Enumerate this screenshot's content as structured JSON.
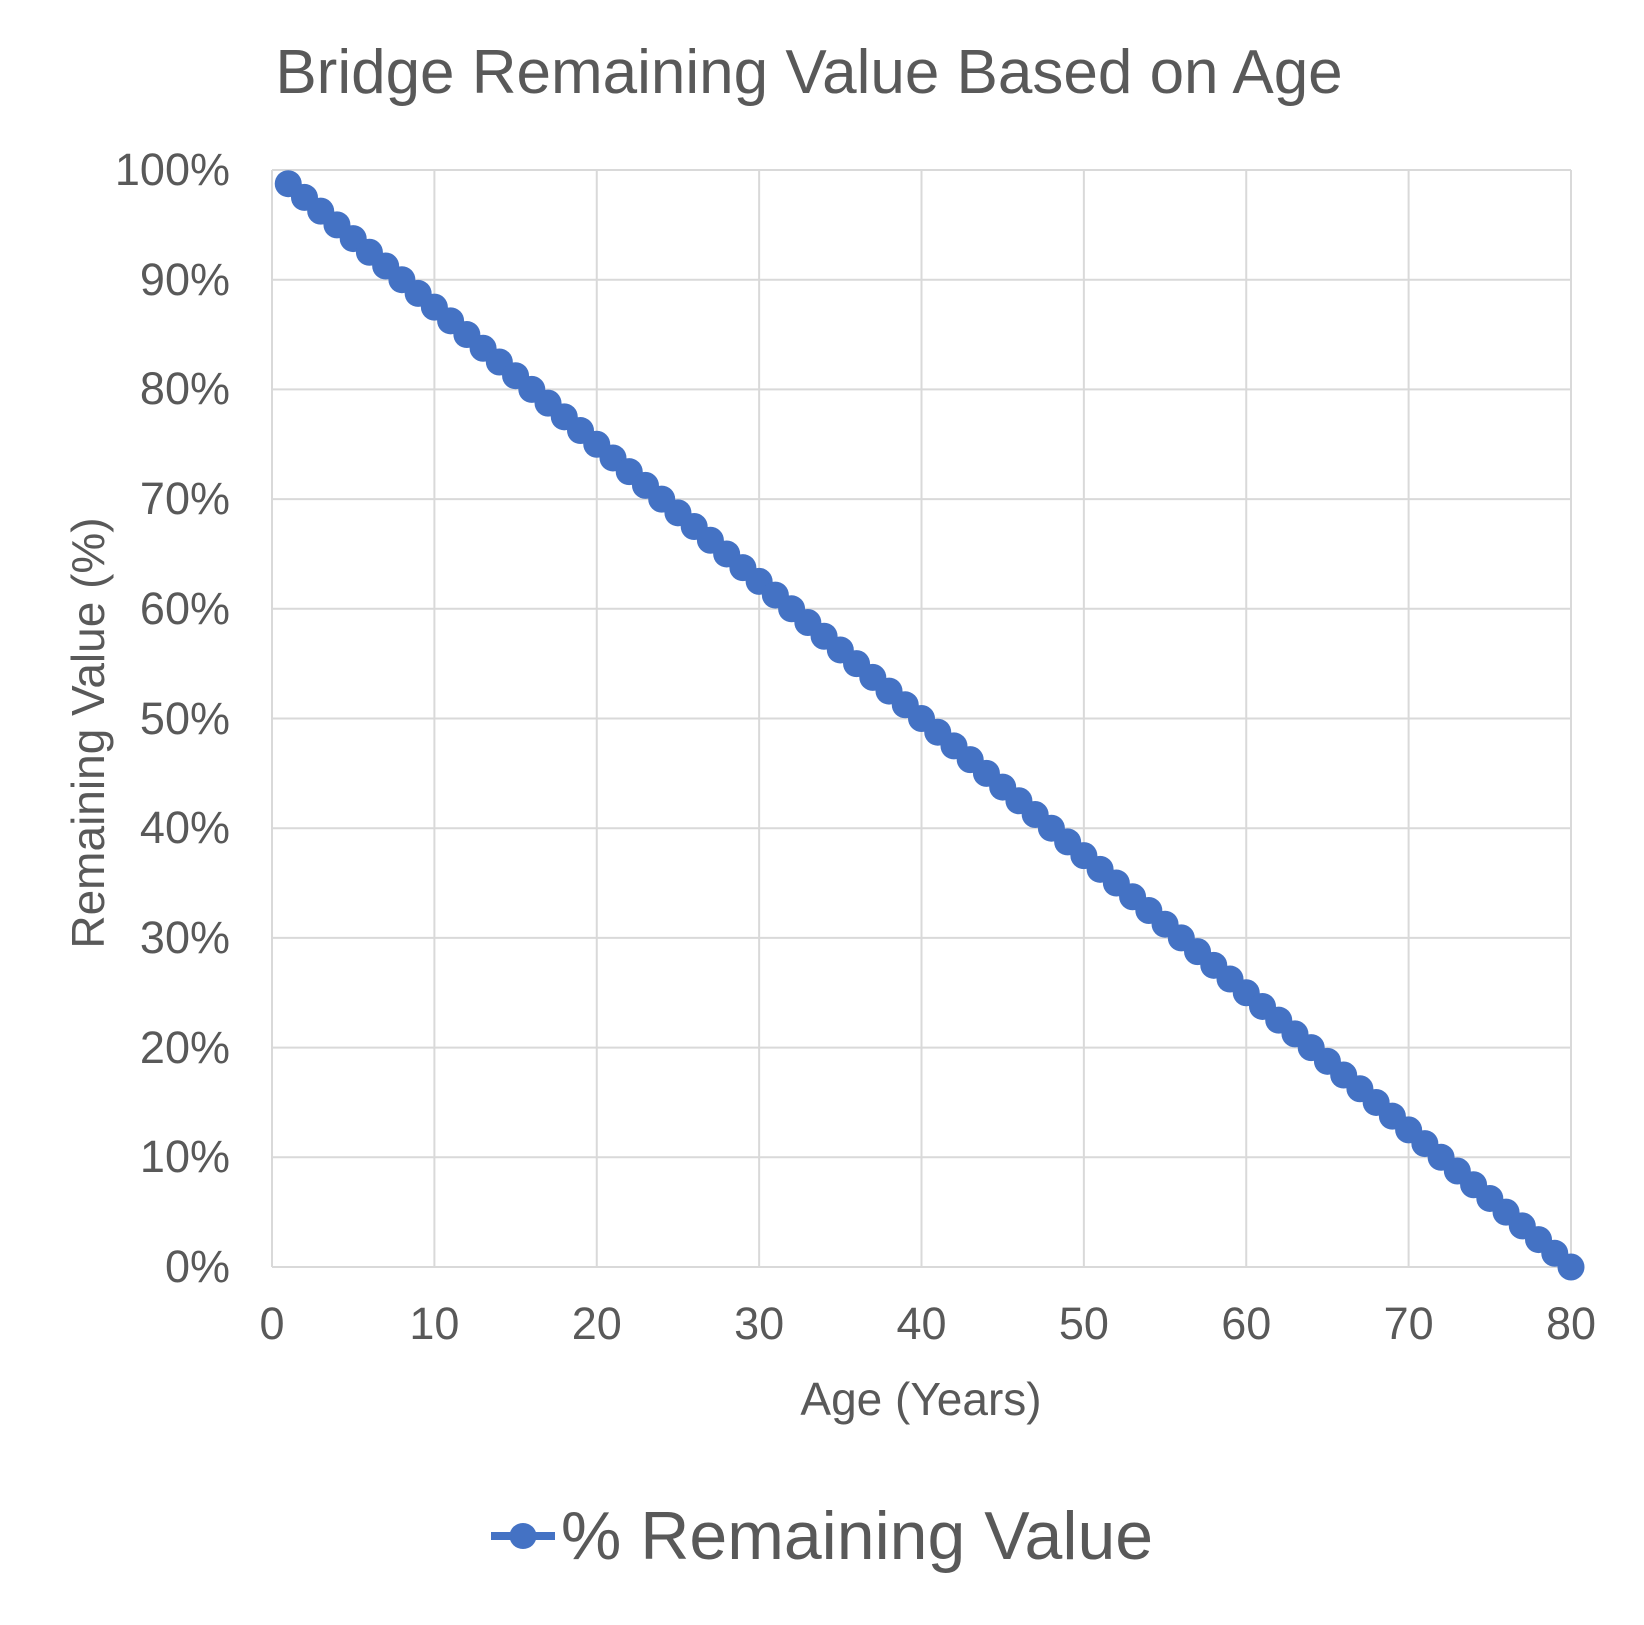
{
  "colors": {
    "series": "#4472C4",
    "grid": "#D9D9D9",
    "text": "#595959",
    "background": "#FFFFFF"
  },
  "chart_data": {
    "type": "line",
    "title": "Bridge Remaining Value Based on Age",
    "xlabel": "Age (Years)",
    "ylabel": "Remaining Value (%)",
    "xlim": [
      0,
      80
    ],
    "ylim": [
      0,
      100
    ],
    "grid": true,
    "legend_position": "bottom",
    "x_ticks": {
      "values": [
        0,
        10,
        20,
        30,
        40,
        50,
        60,
        70,
        80
      ],
      "labels": [
        "0",
        "10",
        "20",
        "30",
        "40",
        "50",
        "60",
        "70",
        "80"
      ]
    },
    "y_ticks": {
      "values": [
        0,
        10,
        20,
        30,
        40,
        50,
        60,
        70,
        80,
        90,
        100
      ],
      "labels": [
        "0%",
        "10%",
        "20%",
        "30%",
        "40%",
        "50%",
        "60%",
        "70%",
        "80%",
        "90%",
        "100%"
      ]
    },
    "series": [
      {
        "name": "% Remaining Value",
        "x": [
          1,
          2,
          3,
          4,
          5,
          6,
          7,
          8,
          9,
          10,
          11,
          12,
          13,
          14,
          15,
          16,
          17,
          18,
          19,
          20,
          21,
          22,
          23,
          24,
          25,
          26,
          27,
          28,
          29,
          30,
          31,
          32,
          33,
          34,
          35,
          36,
          37,
          38,
          39,
          40,
          41,
          42,
          43,
          44,
          45,
          46,
          47,
          48,
          49,
          50,
          51,
          52,
          53,
          54,
          55,
          56,
          57,
          58,
          59,
          60,
          61,
          62,
          63,
          64,
          65,
          66,
          67,
          68,
          69,
          70,
          71,
          72,
          73,
          74,
          75,
          76,
          77,
          78,
          79,
          80
        ],
        "y": [
          98.75,
          97.5,
          96.25,
          95,
          93.75,
          92.5,
          91.25,
          90,
          88.75,
          87.5,
          86.25,
          85,
          83.75,
          82.5,
          81.25,
          80,
          78.75,
          77.5,
          76.25,
          75,
          73.75,
          72.5,
          71.25,
          70,
          68.75,
          67.5,
          66.25,
          65,
          63.75,
          62.5,
          61.25,
          60,
          58.75,
          57.5,
          56.25,
          55,
          53.75,
          52.5,
          51.25,
          50,
          48.75,
          47.5,
          46.25,
          45,
          43.75,
          42.5,
          41.25,
          40,
          38.75,
          37.5,
          36.25,
          35,
          33.75,
          32.5,
          31.25,
          30,
          28.75,
          27.5,
          26.25,
          25,
          23.75,
          22.5,
          21.25,
          20,
          18.75,
          17.5,
          16.25,
          15,
          13.75,
          12.5,
          11.25,
          10,
          8.75,
          7.5,
          6.25,
          5,
          3.75,
          2.5,
          1.25,
          0
        ]
      }
    ]
  }
}
